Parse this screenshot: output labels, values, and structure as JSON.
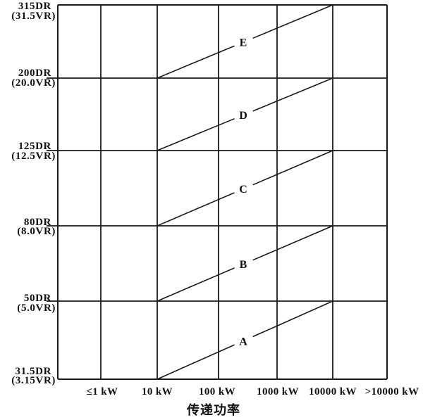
{
  "page": {
    "background": "#ffffff",
    "description": "Scanned black-and-white selection chart: drive ratio (DR/VR) bands A-E versus transmitted power"
  },
  "chart_data": {
    "type": "line",
    "title": "",
    "xlabel": "传递功率",
    "x_ticks": [
      "≤1 kW",
      "10 kW",
      "100 kW",
      "1000 kW",
      "10000 kW",
      ">10000 kW"
    ],
    "y_ticks": [
      {
        "dr": "31.5DR",
        "vr": "(3.15VR)"
      },
      {
        "dr": "50DR",
        "vr": "(5.0VR)"
      },
      {
        "dr": "80DR",
        "vr": "(8.0VR)"
      },
      {
        "dr": "125DR",
        "vr": "(12.5VR)"
      },
      {
        "dr": "200DR",
        "vr": "(20.0VR)"
      },
      {
        "dr": "315DR",
        "vr": "(31.5VR)"
      }
    ],
    "series": [
      {
        "name": "A",
        "x_from": "10 kW",
        "x_to": "10000 kW",
        "y_from": "31.5DR",
        "y_to": "50DR"
      },
      {
        "name": "B",
        "x_from": "10 kW",
        "x_to": "10000 kW",
        "y_from": "50DR",
        "y_to": "80DR"
      },
      {
        "name": "C",
        "x_from": "10 kW",
        "x_to": "10000 kW",
        "y_from": "80DR",
        "y_to": "125DR"
      },
      {
        "name": "D",
        "x_from": "10 kW",
        "x_to": "10000 kW",
        "y_from": "125DR",
        "y_to": "200DR"
      },
      {
        "name": "E",
        "x_from": "10 kW",
        "x_to": "10000 kW",
        "y_from": "200DR",
        "y_to": "315DR"
      }
    ],
    "grid": true,
    "legend_position": "none",
    "colors": {
      "line": "#1a1a1a",
      "text": "#101010",
      "background": "#ffffff"
    }
  }
}
